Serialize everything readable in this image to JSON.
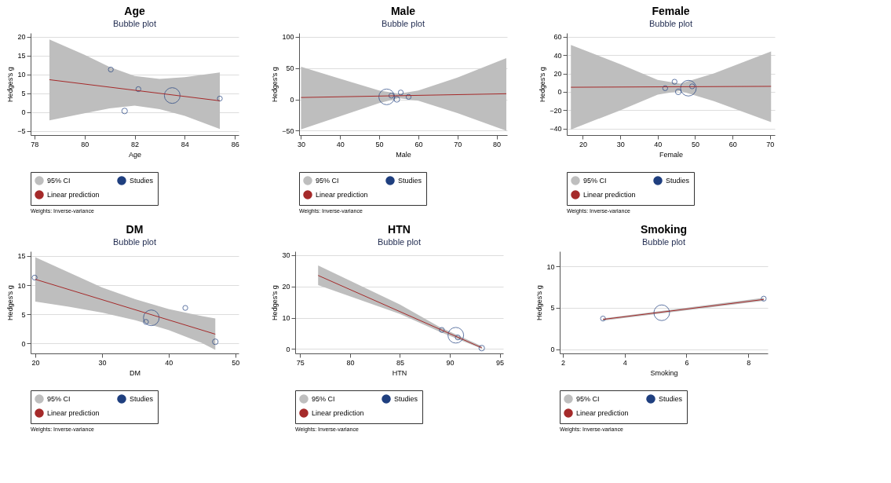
{
  "chart_data": [
    {
      "type": "bubble",
      "title": "Age",
      "subtitle": "Bubble plot",
      "xlabel": "Age",
      "ylabel": "Hedges's g",
      "xlim": [
        77.85,
        86.15
      ],
      "xticks": [
        78,
        80,
        82,
        84,
        86
      ],
      "ylim": [
        -6.1,
        21
      ],
      "yticks": [
        -5,
        0,
        5,
        10,
        15,
        20
      ],
      "grid": "y",
      "legend": "bottom",
      "annotations": [
        "Weights: Inverse-variance"
      ],
      "series": [
        {
          "name": "95% CI",
          "type": "area",
          "color": "#bebebe",
          "x": [
            78.6,
            80,
            81,
            82,
            83,
            84,
            85.4
          ],
          "values": [
            null,
            null,
            null,
            null,
            null,
            null,
            null
          ],
          "upper": [
            19.3,
            15.2,
            12,
            9.6,
            8.8,
            9.3,
            10.5
          ],
          "lower": [
            -2.2,
            -0.3,
            1,
            1.7,
            0.8,
            -1.0,
            -4.5
          ]
        },
        {
          "name": "Studies",
          "color": "#1f3f7f",
          "x": [
            81.05,
            82.15,
            81.6,
            83.5,
            85.4
          ],
          "values": [
            11.3,
            6.1,
            0.3,
            4.4,
            3.6
          ],
          "sizes": [
            0.1,
            0.1,
            0.13,
            1,
            0.1
          ]
        },
        {
          "name": "Linear prediction",
          "type": "line",
          "color": "#a52a2a",
          "x": [
            78.6,
            85.4
          ],
          "values": [
            8.6,
            3.0
          ]
        }
      ]
    },
    {
      "type": "bubble",
      "title": "Male",
      "subtitle": "Bubble plot",
      "xlabel": "Male",
      "ylabel": "Hedges's g",
      "xlim": [
        29.5,
        82.7
      ],
      "xticks": [
        30,
        40,
        50,
        60,
        70,
        80
      ],
      "ylim": [
        -57,
        106
      ],
      "yticks": [
        -50,
        0,
        50,
        100
      ],
      "grid": "y",
      "legend": "bottom",
      "annotations": [
        "Weights: Inverse-variance"
      ],
      "series": [
        {
          "name": "95% CI",
          "type": "area",
          "color": "#bebebe",
          "x": [
            30,
            40,
            50,
            55,
            60,
            70,
            82.5
          ],
          "values": [
            null,
            null,
            null,
            null,
            null,
            null,
            null
          ],
          "upper": [
            52,
            33,
            14,
            9,
            14,
            35,
            66
          ],
          "lower": [
            -48,
            -27,
            -6,
            2,
            -2,
            -22,
            -50
          ]
        },
        {
          "name": "Studies",
          "color": "#1f3f7f",
          "x": [
            51.9,
            53.1,
            55.5,
            54.5,
            57.5
          ],
          "values": [
            4,
            6,
            11,
            0,
            4
          ],
          "sizes": [
            1,
            0.1,
            0.1,
            0.13,
            0.1
          ]
        },
        {
          "name": "Linear prediction",
          "type": "line",
          "color": "#a52a2a",
          "x": [
            30,
            82.5
          ],
          "values": [
            3,
            9
          ]
        }
      ]
    },
    {
      "type": "bubble",
      "title": "Female",
      "subtitle": "Bubble plot",
      "xlabel": "Female",
      "ylabel": "Hedges's g",
      "xlim": [
        15.7,
        71.3
      ],
      "xticks": [
        20,
        30,
        40,
        50,
        60,
        70
      ],
      "ylim": [
        -47,
        64
      ],
      "yticks": [
        -40,
        -20,
        0,
        20,
        40,
        60
      ],
      "grid": "y",
      "legend": "bottom",
      "annotations": [
        "Weights: Inverse-variance"
      ],
      "series": [
        {
          "name": "95% CI",
          "type": "area",
          "color": "#bebebe",
          "x": [
            16.8,
            30,
            40,
            46,
            55,
            70.3
          ],
          "values": [
            null,
            null,
            null,
            null,
            null,
            null
          ],
          "upper": [
            51,
            30,
            13,
            9,
            20,
            44
          ],
          "lower": [
            -41,
            -20,
            -3,
            1,
            -10,
            -33
          ]
        },
        {
          "name": "Studies",
          "color": "#1f3f7f",
          "x": [
            42,
            44.5,
            45.5,
            48.2,
            49.2
          ],
          "values": [
            4,
            11,
            0,
            4,
            6
          ],
          "sizes": [
            0.1,
            0.1,
            0.13,
            1,
            0.1
          ]
        },
        {
          "name": "Linear prediction",
          "type": "line",
          "color": "#a52a2a",
          "x": [
            16.8,
            70.3
          ],
          "values": [
            5,
            6
          ]
        }
      ]
    },
    {
      "type": "bubble",
      "title": "DM",
      "subtitle": "Bubble plot",
      "xlabel": "DM",
      "ylabel": "Hedges's g",
      "xlim": [
        19.3,
        50.5
      ],
      "xticks": [
        20,
        30,
        40,
        50
      ],
      "ylim": [
        -1.7,
        15.8
      ],
      "yticks": [
        0,
        5,
        10,
        15
      ],
      "grid": "y",
      "legend": "bottom",
      "annotations": [
        "Weights: Inverse-variance"
      ],
      "series": [
        {
          "name": "95% CI",
          "type": "area",
          "color": "#bebebe",
          "x": [
            20,
            25,
            30,
            35,
            40,
            45,
            47
          ],
          "values": [
            null,
            null,
            null,
            null,
            null,
            null,
            null
          ],
          "upper": [
            14.8,
            12.2,
            9.6,
            7.6,
            5.9,
            4.7,
            4.3
          ],
          "lower": [
            7.2,
            6.3,
            5.3,
            4.0,
            2.3,
            0.1,
            -1.1
          ]
        },
        {
          "name": "Studies",
          "color": "#1f3f7f",
          "x": [
            19.9,
            36.6,
            37.4,
            42.5,
            47
          ],
          "values": [
            11.3,
            3.7,
            4.4,
            6.1,
            0.3
          ],
          "sizes": [
            0.1,
            0.1,
            1,
            0.1,
            0.13
          ]
        },
        {
          "name": "Linear prediction",
          "type": "line",
          "color": "#a52a2a",
          "x": [
            20,
            47
          ],
          "values": [
            11,
            1.6
          ]
        }
      ]
    },
    {
      "type": "bubble",
      "title": "HTN",
      "subtitle": "Bubble plot",
      "xlabel": "HTN",
      "ylabel": "Hedges's g",
      "xlim": [
        74.5,
        95.35
      ],
      "xticks": [
        75,
        80,
        85,
        90,
        95
      ],
      "ylim": [
        -1.4,
        31.2
      ],
      "yticks": [
        0,
        10,
        20,
        30
      ],
      "grid": "y",
      "legend": "bottom",
      "annotations": [
        "Weights: Inverse-variance"
      ],
      "series": [
        {
          "name": "95% CI",
          "type": "area",
          "color": "#bebebe",
          "x": [
            76.8,
            85,
            89,
            93.2
          ],
          "values": [
            null,
            null,
            null,
            null
          ],
          "upper": [
            26.7,
            14.2,
            7,
            0.9
          ],
          "lower": [
            20.4,
            11.2,
            5.5,
            0.1
          ]
        },
        {
          "name": "Studies",
          "color": "#1f3f7f",
          "x": [
            89.2,
            90.6,
            90.8,
            93.2
          ],
          "values": [
            6.1,
            4.4,
            3.7,
            0.3
          ],
          "sizes": [
            0.1,
            1,
            0.1,
            0.13
          ]
        },
        {
          "name": "Linear prediction",
          "type": "line",
          "color": "#a52a2a",
          "x": [
            76.8,
            93.2
          ],
          "values": [
            23.5,
            0.4
          ]
        }
      ]
    },
    {
      "type": "bubble",
      "title": "Smoking",
      "subtitle": "Bubble plot",
      "xlabel": "Smoking",
      "ylabel": "Hedges's g",
      "xlim": [
        1.9,
        8.63
      ],
      "xticks": [
        2,
        4,
        6,
        8
      ],
      "ylim": [
        -0.5,
        11.8
      ],
      "yticks": [
        0,
        5,
        10
      ],
      "grid": "y",
      "legend": "bottom",
      "annotations": [
        "Weights: Inverse-variance"
      ],
      "series": [
        {
          "name": "95% CI",
          "type": "area",
          "color": "#bebebe",
          "x": [
            3.3,
            8.5
          ],
          "values": [
            null,
            null
          ],
          "upper": [
            3.7,
            6.2
          ],
          "lower": [
            3.45,
            5.85
          ]
        },
        {
          "name": "Studies",
          "color": "#1f3f7f",
          "x": [
            3.3,
            5.2,
            8.5
          ],
          "values": [
            3.7,
            4.4,
            6.1
          ],
          "sizes": [
            0.1,
            1,
            0.1
          ]
        },
        {
          "name": "Linear prediction",
          "type": "line",
          "color": "#a52a2a",
          "x": [
            3.3,
            8.5
          ],
          "values": [
            3.6,
            6.0
          ]
        }
      ]
    }
  ]
}
